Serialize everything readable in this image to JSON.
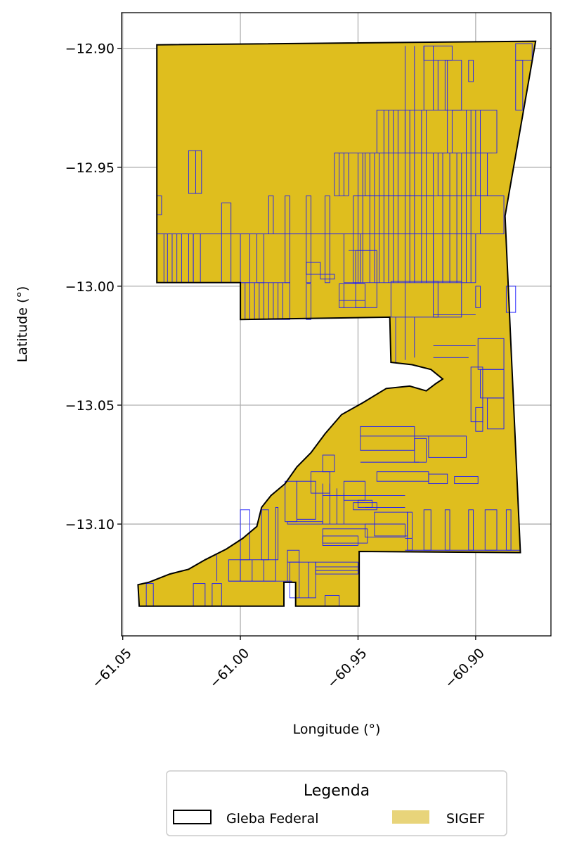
{
  "chart_data": {
    "type": "map",
    "xlabel": "Longitude (°)",
    "ylabel": "Latitude (°)",
    "xlim": [
      -61.0505,
      -60.868
    ],
    "ylim": [
      -13.147,
      -12.885
    ],
    "x_ticks": [
      -61.05,
      -61.0,
      -60.95,
      -60.9
    ],
    "x_tick_labels": [
      "−61.05",
      "−61.00",
      "−60.95",
      "−60.90"
    ],
    "y_ticks": [
      -12.9,
      -12.95,
      -13.0,
      -13.05,
      -13.1
    ],
    "y_tick_labels": [
      "−12.90",
      "−12.95",
      "−13.00",
      "−13.05",
      "−13.10"
    ],
    "grid": true,
    "fill_color": "#DFBE1E",
    "parcel_color": "#1a1aff",
    "boundary_color": "#000000",
    "legend": {
      "title": "Legenda",
      "placement": "bottom-center",
      "entries": [
        {
          "label": "Gleba Federal",
          "style": "outline",
          "color": "#000000"
        },
        {
          "label": "SIGEF",
          "style": "fill",
          "color": "#E8D47A"
        }
      ]
    },
    "regions": {
      "gleba_federal_outline": [
        [
          -61.0355,
          -12.8985
        ],
        [
          -60.8745,
          -12.897
        ],
        [
          -60.8875,
          -12.9705
        ],
        [
          -60.881,
          -13.112
        ],
        [
          -60.9495,
          -13.1115
        ],
        [
          -60.9495,
          -13.1345
        ],
        [
          -60.9765,
          -13.1345
        ],
        [
          -60.9765,
          -13.1245
        ],
        [
          -60.9815,
          -13.1245
        ],
        [
          -60.9815,
          -13.1345
        ],
        [
          -61.043,
          -13.1345
        ],
        [
          -61.0435,
          -13.1255
        ],
        [
          -61.039,
          -13.1245
        ],
        [
          -61.03,
          -13.121
        ],
        [
          -61.022,
          -13.119
        ],
        [
          -61.015,
          -13.115
        ],
        [
          -61.006,
          -13.1105
        ],
        [
          -60.999,
          -13.106
        ],
        [
          -60.993,
          -13.101
        ],
        [
          -60.991,
          -13.093
        ],
        [
          -60.987,
          -13.088
        ],
        [
          -60.981,
          -13.083
        ],
        [
          -60.976,
          -13.076
        ],
        [
          -60.97,
          -13.07
        ],
        [
          -60.964,
          -13.062
        ],
        [
          -60.957,
          -13.054
        ],
        [
          -60.948,
          -13.049
        ],
        [
          -60.938,
          -13.043
        ],
        [
          -60.928,
          -13.042
        ],
        [
          -60.921,
          -13.044
        ],
        [
          -60.917,
          -13.041
        ],
        [
          -60.914,
          -13.039
        ],
        [
          -60.919,
          -13.035
        ],
        [
          -60.927,
          -13.033
        ],
        [
          -60.936,
          -13.032
        ],
        [
          -60.9365,
          -13.013
        ],
        [
          -61.0,
          -13.014
        ],
        [
          -61.0,
          -12.9985
        ],
        [
          -61.0355,
          -12.9985
        ]
      ],
      "parcel_rects": [
        [
          -61.0355,
          -12.978,
          -61.0325,
          -12.9985
        ],
        [
          -61.0355,
          -12.962,
          -61.0335,
          -12.97
        ],
        [
          -61.029,
          -12.978,
          -61.027,
          -12.9985
        ],
        [
          -61.022,
          -12.978,
          -61.02,
          -12.9985
        ],
        [
          -61.02,
          -12.978,
          -61.017,
          -12.9985
        ],
        [
          -61.022,
          -12.943,
          -61.0165,
          -12.961
        ],
        [
          -61.008,
          -12.965,
          -61.004,
          -12.9985
        ],
        [
          -61.0,
          -12.978,
          -60.996,
          -12.9985
        ],
        [
          -60.993,
          -12.978,
          -60.99,
          -12.9985
        ],
        [
          -60.988,
          -12.962,
          -60.986,
          -12.978
        ],
        [
          -60.981,
          -12.962,
          -60.979,
          -12.9985
        ],
        [
          -60.972,
          -12.962,
          -60.97,
          -12.9985
        ],
        [
          -60.964,
          -12.962,
          -60.962,
          -12.9985
        ],
        [
          -61.0,
          -12.9985,
          -60.979,
          -13.014
        ],
        [
          -60.972,
          -12.999,
          -60.97,
          -13.014
        ],
        [
          -60.966,
          -12.995,
          -60.96,
          -12.997
        ],
        [
          -60.96,
          -12.944,
          -60.954,
          -12.962
        ],
        [
          -60.956,
          -12.978,
          -60.949,
          -12.9985
        ],
        [
          -60.958,
          -12.999,
          -60.947,
          -13.009
        ],
        [
          -60.947,
          -12.944,
          -60.918,
          -12.962
        ],
        [
          -60.952,
          -12.962,
          -60.918,
          -12.9985
        ],
        [
          -60.951,
          -12.985,
          -60.942,
          -13.009
        ],
        [
          -60.942,
          -12.926,
          -60.93,
          -12.944
        ],
        [
          -60.936,
          -12.998,
          -60.916,
          -13.013
        ],
        [
          -60.93,
          -12.926,
          -60.912,
          -12.944
        ],
        [
          -60.91,
          -12.926,
          -60.891,
          -12.944
        ],
        [
          -60.916,
          -12.944,
          -60.895,
          -12.962
        ],
        [
          -60.918,
          -12.978,
          -60.9,
          -12.9985
        ],
        [
          -60.898,
          -12.962,
          -60.888,
          -12.978
        ],
        [
          -60.918,
          -12.998,
          -60.906,
          -13.013
        ],
        [
          -60.913,
          -12.905,
          -60.906,
          -12.926
        ],
        [
          -60.922,
          -12.899,
          -60.91,
          -12.905
        ],
        [
          -60.903,
          -12.905,
          -60.901,
          -12.914
        ],
        [
          -60.883,
          -12.898,
          -60.876,
          -12.905
        ],
        [
          -60.883,
          -12.905,
          -60.88,
          -12.926
        ],
        [
          -60.887,
          -13.0,
          -60.883,
          -13.011
        ],
        [
          -60.9,
          -13.0,
          -60.898,
          -13.009
        ],
        [
          -60.899,
          -13.022,
          -60.888,
          -13.035
        ],
        [
          -60.902,
          -13.034,
          -60.897,
          -13.057
        ],
        [
          -60.898,
          -13.035,
          -60.888,
          -13.047
        ],
        [
          -60.895,
          -13.047,
          -60.888,
          -13.06
        ],
        [
          -60.9,
          -13.051,
          -60.897,
          -13.061
        ],
        [
          -60.949,
          -13.059,
          -60.926,
          -13.069
        ],
        [
          -60.926,
          -13.064,
          -60.921,
          -13.074
        ],
        [
          -60.92,
          -13.063,
          -60.904,
          -13.072
        ],
        [
          -60.909,
          -13.08,
          -60.899,
          -13.083
        ],
        [
          -60.942,
          -13.078,
          -60.92,
          -13.082
        ],
        [
          -60.92,
          -13.079,
          -60.912,
          -13.083
        ],
        [
          -60.952,
          -13.091,
          -60.942,
          -13.094
        ],
        [
          -60.943,
          -13.095,
          -60.929,
          -13.105
        ],
        [
          -60.929,
          -13.095,
          -60.927,
          -13.111
        ],
        [
          -60.922,
          -13.094,
          -60.919,
          -13.111
        ],
        [
          -60.913,
          -13.094,
          -60.911,
          -13.111
        ],
        [
          -60.903,
          -13.094,
          -60.901,
          -13.111
        ],
        [
          -60.896,
          -13.094,
          -60.891,
          -13.111
        ],
        [
          -60.887,
          -13.094,
          -60.885,
          -13.111
        ],
        [
          -60.947,
          -13.1,
          -60.93,
          -13.1055
        ],
        [
          -60.965,
          -13.102,
          -60.946,
          -13.108
        ],
        [
          -60.98,
          -13.099,
          -60.965,
          -13.1
        ],
        [
          -60.965,
          -13.105,
          -60.95,
          -13.109
        ],
        [
          -60.968,
          -13.116,
          -60.95,
          -13.121
        ],
        [
          -60.979,
          -13.116,
          -60.968,
          -13.131
        ],
        [
          -60.98,
          -13.111,
          -60.975,
          -13.116
        ],
        [
          -61.005,
          -13.115,
          -61.0,
          -13.124
        ],
        [
          -61.0,
          -13.115,
          -60.985,
          -13.124
        ],
        [
          -61.02,
          -13.125,
          -61.015,
          -13.1345
        ],
        [
          -61.012,
          -13.125,
          -61.008,
          -13.1345
        ],
        [
          -61.04,
          -13.125,
          -61.037,
          -13.1345
        ],
        [
          -60.964,
          -13.13,
          -60.958,
          -13.1345
        ],
        [
          -61.0,
          -13.094,
          -60.996,
          -13.115
        ],
        [
          -60.991,
          -13.094,
          -60.988,
          -13.115
        ],
        [
          -60.985,
          -13.093,
          -60.984,
          -13.115
        ],
        [
          -60.981,
          -13.082,
          -60.976,
          -13.099
        ],
        [
          -60.976,
          -13.082,
          -60.968,
          -13.098
        ],
        [
          -60.97,
          -13.078,
          -60.962,
          -13.087
        ],
        [
          -60.965,
          -13.071,
          -60.96,
          -13.078
        ],
        [
          -60.95,
          -13.09,
          -60.944,
          -13.093
        ],
        [
          -60.956,
          -13.082,
          -60.947,
          -13.09
        ],
        [
          -60.972,
          -12.99,
          -60.966,
          -12.995
        ]
      ],
      "parcel_vlines": [
        [
          -61.031,
          -12.978,
          -12.9985
        ],
        [
          -61.025,
          -12.978,
          -12.9985
        ],
        [
          -61.019,
          -12.943,
          -12.961
        ],
        [
          -60.998,
          -12.9985,
          -13.014
        ],
        [
          -60.996,
          -12.9985,
          -13.014
        ],
        [
          -60.994,
          -12.9985,
          -13.014
        ],
        [
          -60.992,
          -12.9985,
          -13.014
        ],
        [
          -60.99,
          -12.9985,
          -13.014
        ],
        [
          -60.988,
          -12.9985,
          -13.014
        ],
        [
          -60.986,
          -12.9985,
          -13.014
        ],
        [
          -60.984,
          -12.9985,
          -13.014
        ],
        [
          -60.982,
          -12.9985,
          -13.014
        ],
        [
          -60.958,
          -12.944,
          -12.962
        ],
        [
          -60.956,
          -12.944,
          -12.962
        ],
        [
          -60.95,
          -12.944,
          -12.9985
        ],
        [
          -60.948,
          -12.944,
          -12.9985
        ],
        [
          -60.945,
          -12.944,
          -12.9985
        ],
        [
          -60.943,
          -12.944,
          -12.9985
        ],
        [
          -60.941,
          -12.944,
          -12.9985
        ],
        [
          -60.939,
          -12.926,
          -12.9985
        ],
        [
          -60.937,
          -12.926,
          -12.9985
        ],
        [
          -60.935,
          -12.926,
          -12.9985
        ],
        [
          -60.933,
          -12.926,
          -12.9985
        ],
        [
          -60.93,
          -12.926,
          -12.9985
        ],
        [
          -60.928,
          -12.926,
          -12.9985
        ],
        [
          -60.926,
          -12.926,
          -12.9985
        ],
        [
          -60.923,
          -12.926,
          -12.9985
        ],
        [
          -60.921,
          -12.926,
          -12.9985
        ],
        [
          -60.914,
          -12.944,
          -12.9985
        ],
        [
          -60.911,
          -12.944,
          -12.9985
        ],
        [
          -60.908,
          -12.944,
          -12.9985
        ],
        [
          -60.906,
          -12.944,
          -12.9985
        ],
        [
          -60.904,
          -12.926,
          -12.9985
        ],
        [
          -60.902,
          -12.926,
          -12.9985
        ],
        [
          -60.9,
          -12.926,
          -12.962
        ],
        [
          -60.898,
          -12.926,
          -12.962
        ],
        [
          -60.93,
          -12.899,
          -12.926
        ],
        [
          -60.926,
          -12.899,
          -12.926
        ],
        [
          -60.922,
          -12.899,
          -12.926
        ],
        [
          -60.918,
          -12.899,
          -12.926
        ],
        [
          -60.916,
          -12.905,
          -12.926
        ],
        [
          -60.912,
          -12.905,
          -12.926
        ],
        [
          -60.934,
          -13.013,
          -13.032
        ],
        [
          -60.93,
          -13.013,
          -13.031
        ],
        [
          -60.926,
          -13.013,
          -13.03
        ],
        [
          -60.965,
          -13.083,
          -13.1
        ],
        [
          -60.962,
          -13.083,
          -13.1
        ],
        [
          -60.959,
          -13.085,
          -13.1
        ],
        [
          -60.956,
          -13.087,
          -13.1
        ],
        [
          -60.975,
          -13.116,
          -13.131
        ],
        [
          -60.971,
          -13.116,
          -13.131
        ],
        [
          -61.01,
          -13.113,
          -13.124
        ],
        [
          -60.995,
          -13.115,
          -13.124
        ],
        [
          -60.99,
          -13.115,
          -13.124
        ],
        [
          -60.98,
          -13.116,
          -13.124
        ],
        [
          -60.93,
          -12.9985,
          -13.013
        ],
        [
          -60.956,
          -12.999,
          -13.009
        ]
      ],
      "parcel_hlines": [
        [
          -12.944,
          -60.96,
          -60.893
        ],
        [
          -12.962,
          -60.952,
          -60.888
        ],
        [
          -12.978,
          -61.0355,
          -60.888
        ],
        [
          -13.025,
          -60.918,
          -60.9
        ],
        [
          -13.03,
          -60.918,
          -60.903
        ],
        [
          -13.012,
          -60.918,
          -60.9
        ],
        [
          -13.074,
          -60.949,
          -60.924
        ],
        [
          -13.088,
          -60.965,
          -60.93
        ],
        [
          -13.093,
          -60.947,
          -60.93
        ],
        [
          -13.1,
          -60.965,
          -60.93
        ],
        [
          -13.106,
          -60.93,
          -60.927
        ],
        [
          -13.118,
          -60.968,
          -60.95
        ],
        [
          -13.1195,
          -60.968,
          -60.95
        ],
        [
          -13.124,
          -61.005,
          -60.978
        ],
        [
          -13.111,
          -60.93,
          -60.881
        ],
        [
          -13.063,
          -60.949,
          -60.92
        ],
        [
          -12.985,
          -60.954,
          -60.942
        ],
        [
          -13.006,
          -60.958,
          -60.947
        ]
      ]
    }
  }
}
